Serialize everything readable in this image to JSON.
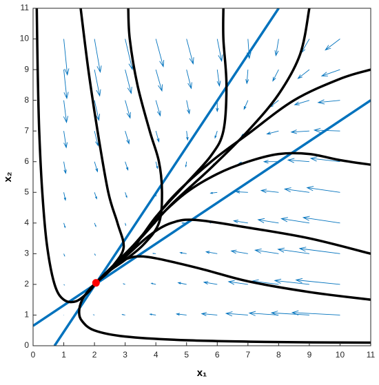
{
  "chart_data": {
    "type": "phase_portrait",
    "xlabel": "x₁",
    "ylabel": "x₂",
    "xlim": [
      0,
      11
    ],
    "ylim": [
      0,
      11
    ],
    "xticks": [
      0,
      1,
      2,
      3,
      4,
      5,
      6,
      7,
      8,
      9,
      10,
      11
    ],
    "yticks": [
      0,
      1,
      2,
      3,
      4,
      5,
      6,
      7,
      8,
      9,
      10,
      11
    ],
    "vector_field": {
      "color": "#0072bd",
      "x": [
        1,
        2,
        3,
        4,
        5,
        6,
        7,
        8,
        9,
        10
      ],
      "y": [
        1,
        2,
        3,
        4,
        5,
        6,
        7,
        8,
        9,
        10
      ],
      "u": [
        [
          0.01,
          -0.03,
          -0.1,
          -0.21,
          -0.36,
          -0.56,
          -0.79,
          -1.06,
          -1.37,
          -1.73
        ],
        [
          0.02,
          0.0,
          -0.06,
          -0.16,
          -0.3,
          -0.48,
          -0.7,
          -0.95,
          -1.25,
          -1.59
        ],
        [
          0.03,
          0.03,
          -0.02,
          -0.1,
          -0.23,
          -0.4,
          -0.6,
          -0.85,
          -1.13,
          -1.46
        ],
        [
          0.05,
          0.05,
          0.02,
          -0.05,
          -0.16,
          -0.32,
          -0.51,
          -0.74,
          -1.01,
          -1.33
        ],
        [
          0.06,
          0.08,
          0.06,
          0.0,
          -0.1,
          -0.24,
          -0.42,
          -0.63,
          -0.89,
          -1.19
        ],
        [
          0.07,
          0.11,
          0.1,
          0.06,
          -0.03,
          -0.16,
          -0.32,
          -0.53,
          -0.77,
          -1.06
        ],
        [
          0.09,
          0.13,
          0.14,
          0.11,
          0.04,
          -0.08,
          -0.23,
          -0.42,
          -0.65,
          -0.93
        ],
        [
          0.1,
          0.16,
          0.18,
          0.16,
          0.1,
          0.0,
          -0.14,
          -0.31,
          -0.53,
          -0.79
        ],
        [
          0.11,
          0.19,
          0.22,
          0.22,
          0.17,
          0.08,
          -0.04,
          -0.21,
          -0.41,
          -0.66
        ],
        [
          0.13,
          0.21,
          0.26,
          0.27,
          0.24,
          0.16,
          0.05,
          -0.1,
          -0.29,
          -0.53
        ]
      ],
      "v": [
        [
          0.0,
          0.01,
          0.02,
          0.03,
          0.04,
          0.05,
          0.06,
          0.07,
          0.08,
          0.09
        ],
        [
          -0.02,
          0.0,
          0.02,
          0.04,
          0.06,
          0.08,
          0.1,
          0.12,
          0.14,
          0.16
        ],
        [
          -0.08,
          -0.05,
          -0.02,
          0.01,
          0.04,
          0.07,
          0.1,
          0.13,
          0.16,
          0.19
        ],
        [
          -0.16,
          -0.12,
          -0.08,
          -0.04,
          0.0,
          0.04,
          0.08,
          0.12,
          0.16,
          0.2
        ],
        [
          -0.28,
          -0.23,
          -0.18,
          -0.13,
          -0.08,
          -0.03,
          0.02,
          0.07,
          0.12,
          0.17
        ],
        [
          -0.42,
          -0.36,
          -0.3,
          -0.24,
          -0.18,
          -0.12,
          -0.06,
          0.0,
          0.06,
          0.12
        ],
        [
          -0.6,
          -0.53,
          -0.46,
          -0.39,
          -0.32,
          -0.25,
          -0.18,
          -0.11,
          -0.04,
          0.03
        ],
        [
          -0.8,
          -0.72,
          -0.64,
          -0.56,
          -0.48,
          -0.4,
          -0.32,
          -0.24,
          -0.16,
          -0.08
        ],
        [
          -1.04,
          -0.95,
          -0.86,
          -0.77,
          -0.68,
          -0.59,
          -0.5,
          -0.41,
          -0.32,
          -0.23
        ],
        [
          -1.3,
          -1.2,
          -1.1,
          -1.0,
          -0.9,
          -0.8,
          -0.7,
          -0.6,
          -0.5,
          -0.4
        ]
      ]
    },
    "series": [
      {
        "color": "#0072bd",
        "width": 3.5,
        "x": [
          0.7,
          8
        ],
        "y": [
          0,
          11
        ]
      },
      {
        "color": "#0072bd",
        "width": 3.5,
        "x": [
          0,
          11
        ],
        "y": [
          0.65,
          8
        ]
      },
      {
        "color": "#000000",
        "width": 3.5,
        "x": [
          0.12,
          0.15,
          0.2,
          0.3,
          0.45,
          0.7,
          1.0,
          1.4,
          1.8,
          2.05
        ],
        "y": [
          11,
          9,
          7,
          5,
          3.3,
          2,
          1.5,
          1.45,
          1.75,
          2.05
        ]
      },
      {
        "color": "#000000",
        "width": 3.5,
        "x": [
          11,
          8,
          5,
          3,
          2,
          1.6,
          1.5,
          1.6,
          1.85,
          2.05
        ],
        "y": [
          0.1,
          0.12,
          0.18,
          0.3,
          0.5,
          0.8,
          1.1,
          1.5,
          1.85,
          2.05
        ]
      },
      {
        "color": "#000000",
        "width": 3.5,
        "x": [
          1.55,
          1.8,
          2.1,
          2.45,
          2.75,
          2.95,
          2.6,
          2.3,
          2.05
        ],
        "y": [
          11,
          9,
          7,
          5,
          4,
          3.2,
          2.6,
          2.3,
          2.05
        ]
      },
      {
        "color": "#000000",
        "width": 3.5,
        "x": [
          3.1,
          3.15,
          3.4,
          3.8,
          4.1,
          4.2,
          4.1,
          3.6,
          3.0,
          2.5,
          2.05
        ],
        "y": [
          11,
          10,
          8.5,
          7,
          6,
          5,
          4,
          3.3,
          2.8,
          2.45,
          2.05
        ]
      },
      {
        "color": "#000000",
        "width": 3.5,
        "x": [
          6.2,
          6.2,
          6.3,
          6.2,
          5.8,
          5,
          4,
          3.2,
          2.5,
          2.05
        ],
        "y": [
          11,
          10,
          8.5,
          7,
          6.2,
          5.3,
          4.2,
          3.1,
          2.45,
          2.05
        ]
      },
      {
        "color": "#000000",
        "width": 3.5,
        "x": [
          9,
          8.7,
          8,
          7,
          5.8,
          4.5,
          3.5,
          2.7,
          2.05
        ],
        "y": [
          11,
          9.5,
          8.2,
          7,
          5.8,
          4.6,
          3.5,
          2.7,
          2.05
        ]
      },
      {
        "color": "#000000",
        "width": 3.5,
        "x": [
          11,
          10,
          8.5,
          7,
          5.8,
          4.5,
          3.4,
          2.6,
          2.05
        ],
        "y": [
          9,
          8.7,
          8,
          6.9,
          6,
          4.8,
          3.4,
          2.6,
          2.05
        ]
      },
      {
        "color": "#000000",
        "width": 3.5,
        "x": [
          11,
          10,
          9,
          8,
          7,
          6,
          5,
          4,
          3.2,
          2.05
        ],
        "y": [
          5.9,
          6.05,
          6.25,
          6.25,
          6,
          5.6,
          5,
          4.1,
          3.2,
          2.05
        ]
      },
      {
        "color": "#000000",
        "width": 3.5,
        "x": [
          11,
          9,
          7,
          5.3,
          4.5,
          3.8,
          3,
          2.4,
          2.05
        ],
        "y": [
          3,
          3.5,
          3.85,
          4.1,
          4,
          3.6,
          2.9,
          2.4,
          2.05
        ]
      },
      {
        "color": "#000000",
        "width": 3.5,
        "x": [
          11,
          9,
          7,
          5.5,
          4,
          3.3,
          2.8,
          2.4,
          2.05
        ],
        "y": [
          1.5,
          1.75,
          2.1,
          2.5,
          2.85,
          2.9,
          2.7,
          2.35,
          2.05
        ]
      }
    ],
    "point": {
      "x": 2.05,
      "y": 2.05,
      "color": "#ff0000"
    }
  }
}
